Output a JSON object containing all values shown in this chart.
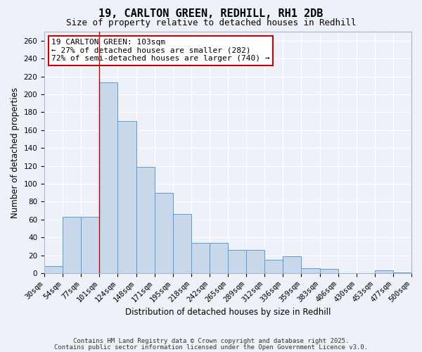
{
  "title": "19, CARLTON GREEN, REDHILL, RH1 2DB",
  "subtitle": "Size of property relative to detached houses in Redhill",
  "xlabel": "Distribution of detached houses by size in Redhill",
  "ylabel": "Number of detached properties",
  "bar_color": "#c8d8ea",
  "bar_edge_color": "#5b9bd5",
  "background_color": "#eef2f8",
  "grid_color": "#ffffff",
  "bin_labels": [
    "30sqm",
    "54sqm",
    "77sqm",
    "101sqm",
    "124sqm",
    "148sqm",
    "171sqm",
    "195sqm",
    "218sqm",
    "242sqm",
    "265sqm",
    "289sqm",
    "312sqm",
    "336sqm",
    "359sqm",
    "383sqm",
    "406sqm",
    "430sqm",
    "453sqm",
    "477sqm",
    "500sqm"
  ],
  "bar_heights": [
    8,
    63,
    63,
    213,
    170,
    119,
    90,
    66,
    34,
    34,
    26,
    26,
    15,
    19,
    6,
    5,
    0,
    0,
    3,
    1
  ],
  "ylim": [
    0,
    270
  ],
  "yticks": [
    0,
    20,
    40,
    60,
    80,
    100,
    120,
    140,
    160,
    180,
    200,
    220,
    240,
    260
  ],
  "red_line_index": 3,
  "annotation_title": "19 CARLTON GREEN: 103sqm",
  "annotation_line1": "← 27% of detached houses are smaller (282)",
  "annotation_line2": "72% of semi-detached houses are larger (740) →",
  "annotation_box_facecolor": "#ffffff",
  "annotation_box_edgecolor": "#cc0000",
  "red_line_color": "#cc0000",
  "footnote1": "Contains HM Land Registry data © Crown copyright and database right 2025.",
  "footnote2": "Contains public sector information licensed under the Open Government Licence v3.0.",
  "title_fontsize": 11,
  "subtitle_fontsize": 9,
  "axis_label_fontsize": 8.5,
  "tick_fontsize": 7.5,
  "annotation_fontsize": 8,
  "footnote_fontsize": 6.5
}
